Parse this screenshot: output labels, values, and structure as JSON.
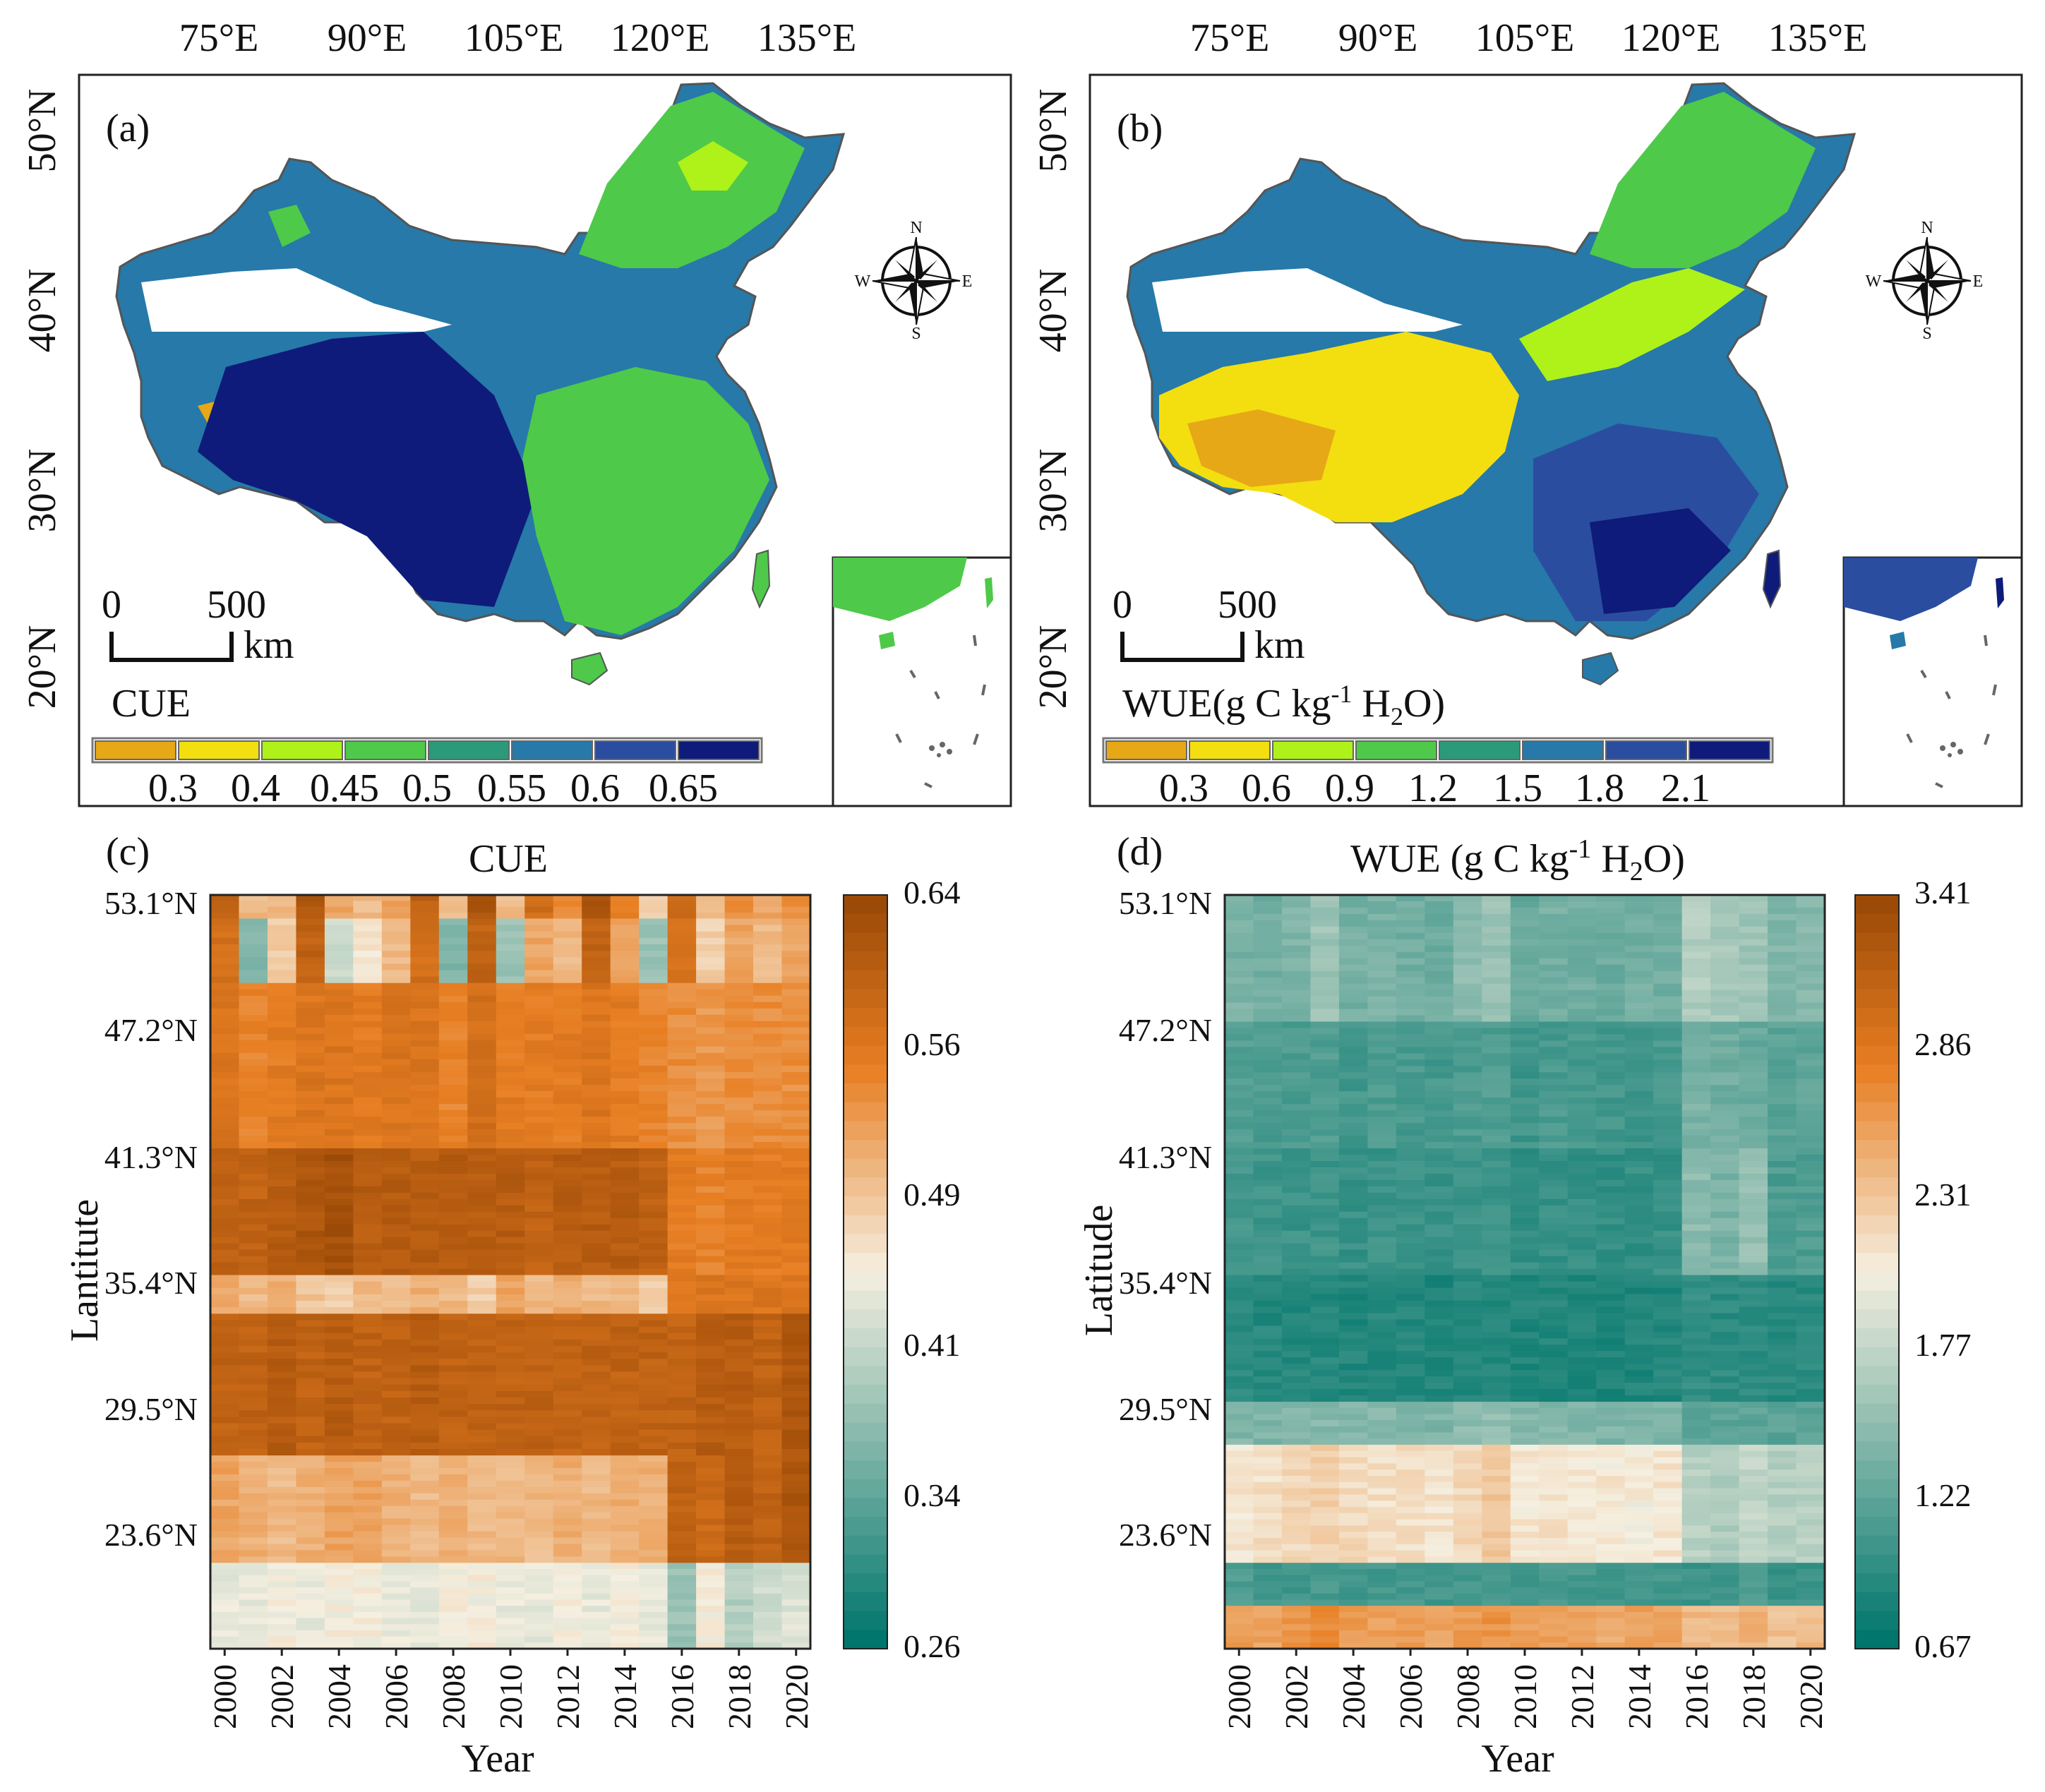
{
  "colors": {
    "cue_bins": [
      "#e6a817",
      "#f3de10",
      "#aef21a",
      "#4ec94a",
      "#2a9a7a",
      "#2679a8",
      "#2b4da0",
      "#0e1b7a"
    ],
    "wue_bins": [
      "#e6a817",
      "#f3de10",
      "#aef21a",
      "#4ec94a",
      "#2a9a7a",
      "#2679a8",
      "#2b4da0",
      "#0e1b7a"
    ],
    "heat_low": "#00766c",
    "heat_mid": "#f5efe0",
    "heat_high": "#9c4a07",
    "frame": "#222222"
  },
  "map_axes": {
    "longitudes": [
      "75°E",
      "90°E",
      "105°E",
      "120°E",
      "135°E"
    ],
    "latitudes": [
      "50°N",
      "40°N",
      "30°N",
      "20°N"
    ]
  },
  "panel_a": {
    "tag": "(a)",
    "scale_zero": "0",
    "scale_max": "500",
    "scale_unit": "km",
    "legend_title": "CUE",
    "legend_ticks": [
      "0.3",
      "0.4",
      "0.45",
      "0.5",
      "0.55",
      "0.6",
      "0.65"
    ],
    "compass": {
      "n": "N",
      "s": "S",
      "e": "E",
      "w": "W"
    }
  },
  "panel_b": {
    "tag": "(b)",
    "scale_zero": "0",
    "scale_max": "500",
    "scale_unit": "km",
    "legend_title_main": "WUE(g C kg",
    "legend_title_sup": "-1",
    "legend_title_mid": " H",
    "legend_title_sub": "2",
    "legend_title_end": "O)",
    "legend_ticks": [
      "0.3",
      "0.6",
      "0.9",
      "1.2",
      "1.5",
      "1.8",
      "2.1"
    ],
    "compass": {
      "n": "N",
      "s": "S",
      "e": "E",
      "w": "W"
    }
  },
  "panel_c": {
    "tag": "(c)",
    "title": "CUE",
    "xlabel": "Year",
    "ylabel": "Lantitute",
    "lat_ticks": [
      "53.1°N",
      "47.2°N",
      "41.3°N",
      "35.4°N",
      "29.5°N",
      "23.6°N"
    ],
    "year_ticks": [
      "2000",
      "2002",
      "2004",
      "2006",
      "2008",
      "2010",
      "2012",
      "2014",
      "2016",
      "2018",
      "2020"
    ],
    "colorbar_ticks": [
      "0.64",
      "0.56",
      "0.49",
      "0.41",
      "0.34",
      "0.26"
    ]
  },
  "panel_d": {
    "tag": "(d)",
    "title_main": "WUE (g C kg",
    "title_sup": "-1",
    "title_mid": " H",
    "title_sub": "2",
    "title_end": "O)",
    "xlabel": "Year",
    "ylabel": "Latitude",
    "lat_ticks": [
      "53.1°N",
      "47.2°N",
      "41.3°N",
      "35.4°N",
      "29.5°N",
      "23.6°N"
    ],
    "year_ticks": [
      "2000",
      "2002",
      "2004",
      "2006",
      "2008",
      "2010",
      "2012",
      "2014",
      "2016",
      "2018",
      "2020"
    ],
    "colorbar_ticks": [
      "3.41",
      "2.86",
      "2.31",
      "1.77",
      "1.22",
      "0.67"
    ]
  },
  "chart_data": [
    {
      "type": "heatmap",
      "title": "CUE",
      "xlabel": "Year",
      "ylabel": "Lantitute",
      "x": [
        2000,
        2001,
        2002,
        2003,
        2004,
        2005,
        2006,
        2007,
        2008,
        2009,
        2010,
        2011,
        2012,
        2013,
        2014,
        2015,
        2016,
        2017,
        2018,
        2019,
        2020
      ],
      "y_bands": [
        {
          "lat_top": 53.1,
          "lat_bottom": 52.0,
          "values": [
            0.6,
            0.5,
            0.5,
            0.62,
            0.52,
            0.5,
            0.52,
            0.6,
            0.5,
            0.62,
            0.5,
            0.58,
            0.54,
            0.62,
            0.56,
            0.48,
            0.58,
            0.5,
            0.54,
            0.52,
            0.54
          ]
        },
        {
          "lat_top": 52.0,
          "lat_bottom": 49.0,
          "values": [
            0.58,
            0.36,
            0.48,
            0.6,
            0.42,
            0.46,
            0.5,
            0.58,
            0.36,
            0.6,
            0.38,
            0.52,
            0.5,
            0.6,
            0.52,
            0.38,
            0.58,
            0.48,
            0.52,
            0.5,
            0.52
          ]
        },
        {
          "lat_top": 49.0,
          "lat_bottom": 41.3,
          "values": [
            0.57,
            0.55,
            0.56,
            0.57,
            0.57,
            0.56,
            0.57,
            0.57,
            0.55,
            0.58,
            0.56,
            0.56,
            0.56,
            0.57,
            0.56,
            0.55,
            0.54,
            0.53,
            0.54,
            0.54,
            0.54
          ]
        },
        {
          "lat_top": 41.3,
          "lat_bottom": 35.4,
          "values": [
            0.6,
            0.6,
            0.61,
            0.62,
            0.63,
            0.61,
            0.61,
            0.61,
            0.61,
            0.61,
            0.61,
            0.6,
            0.61,
            0.61,
            0.61,
            0.6,
            0.56,
            0.55,
            0.56,
            0.56,
            0.56
          ]
        },
        {
          "lat_top": 35.4,
          "lat_bottom": 33.6,
          "values": [
            0.52,
            0.5,
            0.51,
            0.49,
            0.48,
            0.5,
            0.5,
            0.51,
            0.5,
            0.48,
            0.52,
            0.5,
            0.51,
            0.5,
            0.5,
            0.48,
            0.57,
            0.57,
            0.57,
            0.57,
            0.57
          ]
        },
        {
          "lat_top": 33.6,
          "lat_bottom": 27.0,
          "values": [
            0.6,
            0.6,
            0.61,
            0.6,
            0.61,
            0.6,
            0.6,
            0.61,
            0.6,
            0.6,
            0.6,
            0.6,
            0.6,
            0.6,
            0.6,
            0.6,
            0.6,
            0.61,
            0.61,
            0.6,
            0.62
          ]
        },
        {
          "lat_top": 27.0,
          "lat_bottom": 22.0,
          "values": [
            0.52,
            0.51,
            0.5,
            0.51,
            0.52,
            0.52,
            0.51,
            0.5,
            0.51,
            0.5,
            0.5,
            0.5,
            0.51,
            0.5,
            0.51,
            0.51,
            0.6,
            0.59,
            0.61,
            0.6,
            0.62
          ]
        },
        {
          "lat_top": 22.0,
          "lat_bottom": 18.0,
          "values": [
            0.44,
            0.44,
            0.45,
            0.44,
            0.45,
            0.45,
            0.44,
            0.44,
            0.45,
            0.45,
            0.44,
            0.44,
            0.45,
            0.44,
            0.45,
            0.44,
            0.38,
            0.45,
            0.4,
            0.42,
            0.43
          ]
        }
      ],
      "colorbar": {
        "min": 0.26,
        "max": 0.64,
        "ticks": [
          0.64,
          0.56,
          0.49,
          0.41,
          0.34,
          0.26
        ]
      }
    },
    {
      "type": "heatmap",
      "title": "WUE (g C kg-1 H2O)",
      "xlabel": "Year",
      "ylabel": "Latitude",
      "x": [
        2000,
        2001,
        2002,
        2003,
        2004,
        2005,
        2006,
        2007,
        2008,
        2009,
        2010,
        2011,
        2012,
        2013,
        2014,
        2015,
        2016,
        2017,
        2018,
        2019,
        2020
      ],
      "y_bands": [
        {
          "lat_top": 53.1,
          "lat_bottom": 47.2,
          "values": [
            1.35,
            1.3,
            1.38,
            1.55,
            1.32,
            1.35,
            1.3,
            1.28,
            1.45,
            1.52,
            1.25,
            1.32,
            1.3,
            1.28,
            1.32,
            1.3,
            1.65,
            1.6,
            1.55,
            1.4,
            1.42
          ]
        },
        {
          "lat_top": 47.2,
          "lat_bottom": 41.3,
          "values": [
            1.15,
            1.1,
            1.08,
            1.12,
            1.05,
            1.1,
            1.08,
            1.06,
            1.1,
            1.12,
            1.02,
            1.08,
            1.06,
            1.05,
            1.03,
            1.08,
            1.35,
            1.3,
            1.25,
            1.18,
            1.2
          ]
        },
        {
          "lat_top": 41.3,
          "lat_bottom": 35.4,
          "values": [
            1.05,
            1.02,
            1.0,
            1.02,
            0.98,
            1.0,
            0.98,
            0.97,
            1.0,
            1.02,
            0.96,
            0.98,
            0.96,
            0.95,
            0.96,
            0.98,
            1.45,
            1.35,
            1.5,
            1.1,
            1.12
          ]
        },
        {
          "lat_top": 35.4,
          "lat_bottom": 29.5,
          "values": [
            0.9,
            0.88,
            0.87,
            0.88,
            0.86,
            0.88,
            0.86,
            0.85,
            0.87,
            0.88,
            0.85,
            0.86,
            0.85,
            0.84,
            0.85,
            0.86,
            0.95,
            0.92,
            0.92,
            0.9,
            0.9
          ]
        },
        {
          "lat_top": 29.5,
          "lat_bottom": 27.5,
          "values": [
            1.4,
            1.38,
            1.4,
            1.42,
            1.4,
            1.42,
            1.4,
            1.38,
            1.45,
            1.48,
            1.4,
            1.4,
            1.38,
            1.38,
            1.36,
            1.38,
            1.2,
            1.18,
            1.2,
            1.18,
            1.18
          ]
        },
        {
          "lat_top": 27.5,
          "lat_bottom": 22.0,
          "values": [
            2.1,
            2.15,
            2.2,
            2.25,
            2.18,
            2.15,
            2.15,
            2.12,
            2.2,
            2.3,
            2.1,
            2.12,
            2.1,
            2.08,
            2.05,
            2.1,
            1.7,
            1.65,
            1.75,
            1.68,
            1.7
          ]
        },
        {
          "lat_top": 22.0,
          "lat_bottom": 20.0,
          "values": [
            1.1,
            1.05,
            1.05,
            1.08,
            1.05,
            1.05,
            1.06,
            1.05,
            1.06,
            1.08,
            1.05,
            1.05,
            1.05,
            1.04,
            1.05,
            1.05,
            1.0,
            1.0,
            1.1,
            1.0,
            1.0
          ]
        },
        {
          "lat_top": 20.0,
          "lat_bottom": 18.0,
          "values": [
            2.6,
            2.55,
            2.65,
            2.7,
            2.6,
            2.55,
            2.6,
            2.55,
            2.6,
            2.65,
            2.55,
            2.55,
            2.55,
            2.5,
            2.55,
            2.55,
            2.4,
            2.35,
            2.45,
            2.35,
            2.4
          ]
        }
      ],
      "colorbar": {
        "min": 0.67,
        "max": 3.41,
        "ticks": [
          3.41,
          2.86,
          2.31,
          1.77,
          1.22,
          0.67
        ]
      }
    }
  ]
}
